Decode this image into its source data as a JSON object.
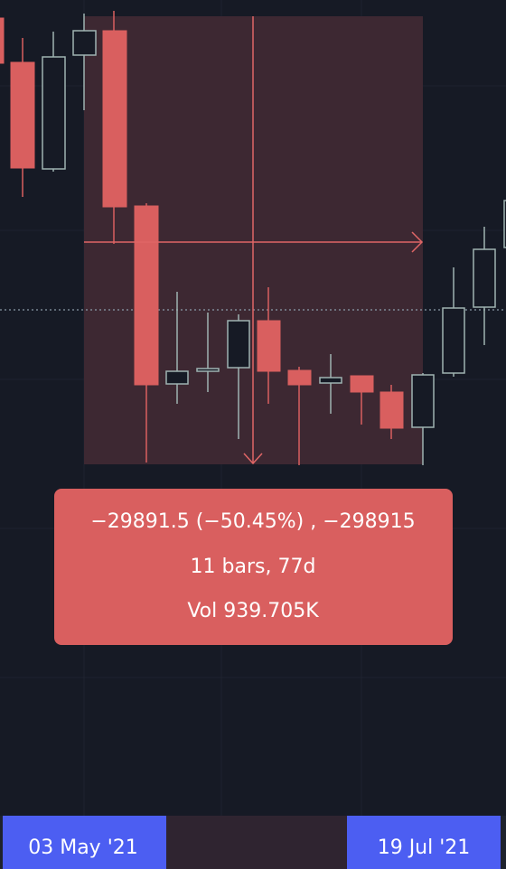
{
  "measure": {
    "change": "−29891.5 (−50.45%) , −298915",
    "bars": "11 bars, 77d",
    "volume": "Vol 939.705K"
  },
  "time_axis": {
    "start": "03 May '21",
    "end": "19 Jul '21"
  }
}
